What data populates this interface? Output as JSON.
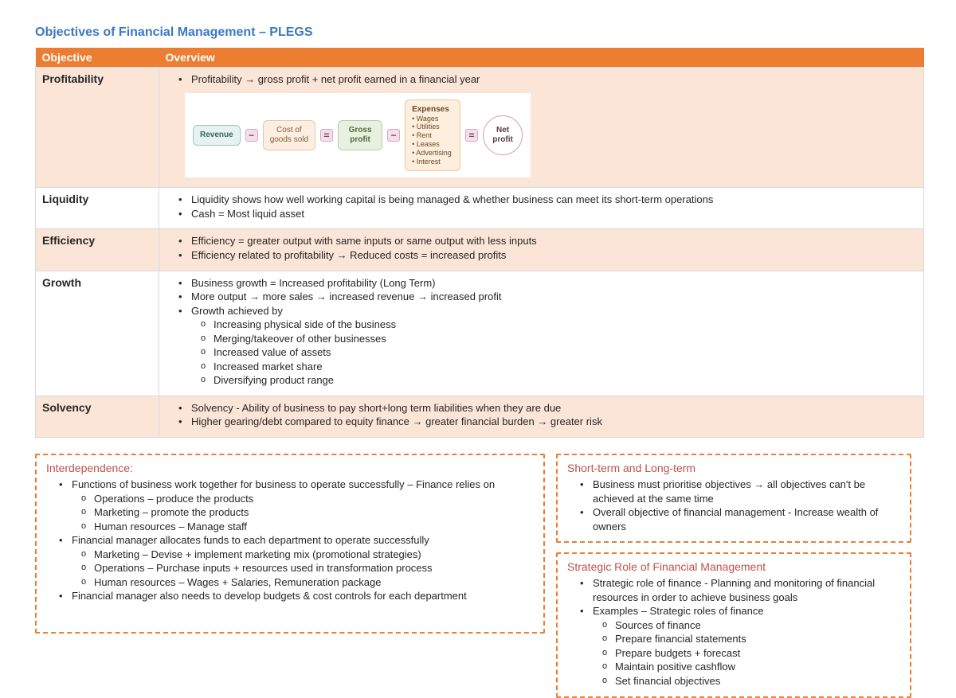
{
  "title": "Objectives of Financial Management – PLEGS",
  "colors": {
    "accent": "#ed7d31",
    "title": "#3b78c5",
    "panel_title": "#c1504c",
    "row_odd": "#fbe5d6"
  },
  "headers": {
    "objective": "Objective",
    "overview": "Overview"
  },
  "rows": {
    "profitability": {
      "label": "Profitability",
      "bullets": [
        "Profitability → gross profit + net profit earned in a financial year"
      ]
    },
    "liquidity": {
      "label": "Liquidity",
      "bullets": [
        "Liquidity shows how well working capital is being managed & whether business can meet its short-term operations",
        "Cash = Most liquid asset"
      ]
    },
    "efficiency": {
      "label": "Efficiency",
      "bullets": [
        "Efficiency = greater output with same inputs or same output with less inputs",
        "Efficiency related to profitability → Reduced costs = increased profits"
      ]
    },
    "growth": {
      "label": "Growth",
      "bullets": [
        "Business growth = Increased profitability (Long Term)",
        "More output → more sales → increased revenue → increased profit",
        "Growth achieved by"
      ],
      "subs": [
        "Increasing physical side of the business",
        "Merging/takeover of other businesses",
        "Increased value of assets",
        "Increased market share",
        "Diversifying product range"
      ]
    },
    "solvency": {
      "label": "Solvency",
      "bullets": [
        "Solvency - Ability of business to pay short+long term liabilities when they are due",
        "Higher gearing/debt compared to equity finance → greater financial burden → greater risk"
      ]
    }
  },
  "diagram": {
    "nodes": [
      {
        "label": "Revenue",
        "bg": "#e6f2ef",
        "border": "#9cc8bd"
      },
      {
        "label": "Cost of\ngoods sold",
        "bg": "#fbeee2",
        "border": "#e7c6a6"
      },
      {
        "label": "Gross\nprofit",
        "bg": "#e8f0e1",
        "border": "#b6cda3"
      },
      {
        "label": "Expenses",
        "bg": "#fdeedd",
        "border": "#e8c9a3",
        "items": [
          "• Wages",
          "• Utilities",
          "• Rent",
          "• Leases",
          "• Advertising",
          "• Interest"
        ]
      },
      {
        "label": "Net\nprofit"
      }
    ],
    "ops": [
      "−",
      "=",
      "−",
      "="
    ],
    "op_style": {
      "bg": "#f4dfe8",
      "border": "#d9a8bd"
    }
  },
  "panels": {
    "inter": {
      "title": "Interdependence:",
      "b1": "Functions of business work together for business to operate successfully – Finance relies on",
      "s1": [
        "Operations – produce the products",
        "Marketing – promote the products",
        "Human resources – Manage staff"
      ],
      "b2": "Financial manager allocates funds to each department to operate successfully",
      "s2": [
        "Marketing – Devise + implement marketing mix (promotional strategies)",
        "Operations – Purchase inputs + resources used in transformation process",
        "Human resources – Wages + Salaries, Remuneration package"
      ],
      "b3": "Financial manager also needs to develop budgets & cost controls for each department"
    },
    "short": {
      "title": "Short-term and Long-term",
      "bullets": [
        "Business must prioritise objectives → all objectives can't be achieved at the same time",
        "Overall objective of financial management - Increase wealth of owners"
      ]
    },
    "strat": {
      "title": "Strategic Role of Financial Management",
      "b1": "Strategic role of finance - Planning and monitoring of financial resources in order to achieve business goals",
      "b2": "Examples – Strategic roles of finance",
      "subs": [
        "Sources of finance",
        "Prepare financial statements",
        "Prepare budgets + forecast",
        "Maintain positive cashflow",
        "Set financial objectives"
      ]
    }
  }
}
